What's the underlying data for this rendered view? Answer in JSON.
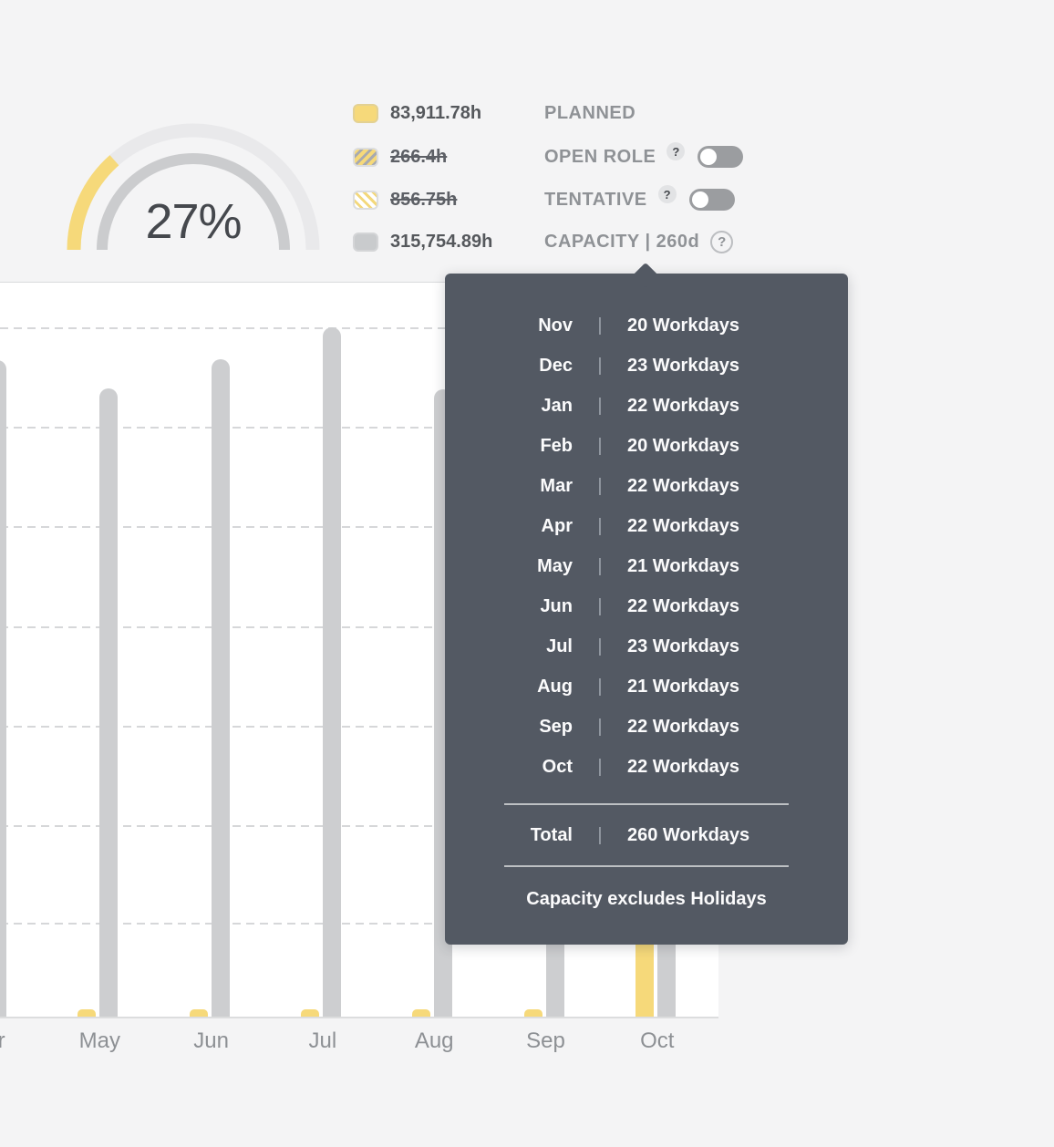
{
  "gauge": {
    "percent_label": "27%",
    "percent_value": 27
  },
  "legend": {
    "items": [
      {
        "key": "planned",
        "value": "83,911.78h",
        "label": "PLANNED",
        "swatch": "solid-yellow",
        "strikethrough": false,
        "help": null,
        "toggle": null
      },
      {
        "key": "open-role",
        "value": "266.4h",
        "label": "OPEN ROLE",
        "swatch": "hatch-gray-on-yellow",
        "strikethrough": true,
        "help": "filled",
        "toggle": "off"
      },
      {
        "key": "tentative",
        "value": "856.75h",
        "label": "TENTATIVE",
        "swatch": "hatch-yellow-on-white",
        "strikethrough": true,
        "help": "filled",
        "toggle": "off"
      },
      {
        "key": "capacity",
        "value": "315,754.89h",
        "label": "CAPACITY | 260d",
        "swatch": "solid-gray",
        "strikethrough": false,
        "help": "outline",
        "toggle": null
      }
    ],
    "help_glyph": "?"
  },
  "capacity_popover": {
    "rows": [
      {
        "month": "Nov",
        "workdays": "20 Workdays"
      },
      {
        "month": "Dec",
        "workdays": "23 Workdays"
      },
      {
        "month": "Jan",
        "workdays": "22 Workdays"
      },
      {
        "month": "Feb",
        "workdays": "20 Workdays"
      },
      {
        "month": "Mar",
        "workdays": "22 Workdays"
      },
      {
        "month": "Apr",
        "workdays": "22 Workdays"
      },
      {
        "month": "May",
        "workdays": "21 Workdays"
      },
      {
        "month": "Jun",
        "workdays": "22 Workdays"
      },
      {
        "month": "Jul",
        "workdays": "23 Workdays"
      },
      {
        "month": "Aug",
        "workdays": "21 Workdays"
      },
      {
        "month": "Sep",
        "workdays": "22 Workdays"
      },
      {
        "month": "Oct",
        "workdays": "22 Workdays"
      }
    ],
    "separator": "|",
    "total_label": "Total",
    "total_value": "260 Workdays",
    "footnote": "Capacity excludes Holidays"
  },
  "chart_data": {
    "type": "bar",
    "title": "",
    "xlabel": "",
    "ylabel": "",
    "categories": [
      "Apr",
      "May",
      "Jun",
      "Jul",
      "Aug",
      "Sep",
      "Oct"
    ],
    "series": [
      {
        "name": "Planned",
        "color": "#f6d97a",
        "rel_heights": [
          0.01,
          0.01,
          0.01,
          0.01,
          0.01,
          0.01,
          0.199
        ]
      },
      {
        "name": "Capacity",
        "color": "#cdced0",
        "rel_heights": [
          0.895,
          0.856,
          0.896,
          0.939,
          0.855,
          0.9,
          0.865
        ]
      }
    ],
    "note": "No y-axis tick labels visible; heights are fractions of plot height. Sep/Oct capacity and Oct planned tops are occluded by the popover.",
    "grid": "horizontal-dashed",
    "legend_position": "top-right"
  },
  "colors": {
    "accent_yellow": "#f6d97a",
    "bar_gray": "#cdced0",
    "popover_bg": "#535963",
    "page_bg": "#f4f4f5",
    "text_dark": "#45484d",
    "text_muted": "#8f9296"
  }
}
